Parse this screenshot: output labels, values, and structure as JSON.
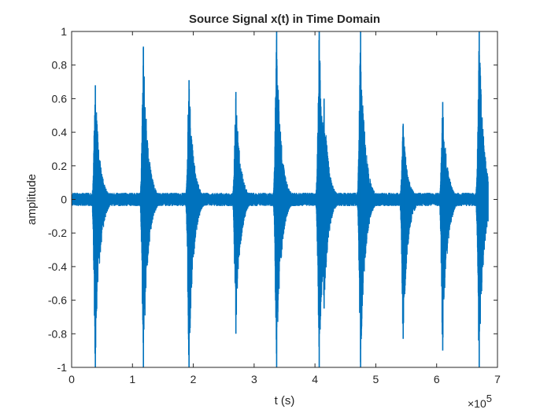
{
  "chart_data": {
    "type": "line",
    "title": "Source Signal x(t) in Time Domain",
    "xlabel": "t (s)",
    "ylabel": "amplitude",
    "xlim": [
      0,
      7
    ],
    "ylim": [
      -1,
      1
    ],
    "x_scale_label": "×10",
    "x_scale_exponent": "5",
    "x_ticks": [
      "0",
      "1",
      "2",
      "3",
      "4",
      "5",
      "6",
      "7"
    ],
    "y_ticks": [
      "-1",
      "-0.8",
      "-0.6",
      "-0.4",
      "-0.2",
      "0",
      "0.2",
      "0.4",
      "0.6",
      "0.8",
      "1"
    ],
    "grid": false,
    "series": [
      {
        "color": "#0072BD",
        "noise_amplitude": 0.04,
        "x_end": 6.85,
        "bursts": [
          {
            "x": 0.39,
            "max": 0.68,
            "min": -1.0
          },
          {
            "x": 1.18,
            "max": 0.91,
            "min": -1.0
          },
          {
            "x": 1.93,
            "max": 0.71,
            "min": -1.0
          },
          {
            "x": 2.7,
            "max": 0.64,
            "min": -0.8
          },
          {
            "x": 3.37,
            "max": 1.0,
            "min": -1.0
          },
          {
            "x": 4.07,
            "max": 1.0,
            "min": -1.0
          },
          {
            "x": 4.15,
            "max": 0.6,
            "min": -0.65
          },
          {
            "x": 4.75,
            "max": 1.0,
            "min": -1.0
          },
          {
            "x": 5.45,
            "max": 0.45,
            "min": -0.83
          },
          {
            "x": 6.1,
            "max": 0.58,
            "min": -0.9
          },
          {
            "x": 6.7,
            "max": 1.0,
            "min": -1.0
          }
        ]
      }
    ]
  }
}
